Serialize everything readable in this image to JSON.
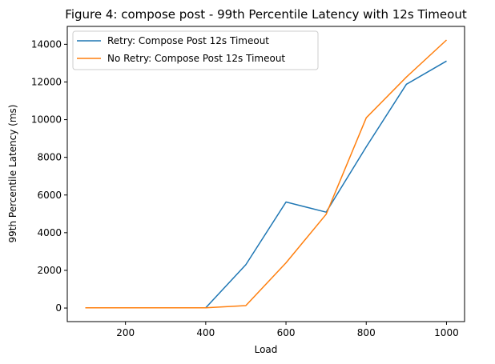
{
  "chart_data": {
    "type": "line",
    "title": "Figure 4: compose post - 99th Percentile Latency with 12s Timeout",
    "xlabel": "Load",
    "ylabel": "99th Percentile Latency (ms)",
    "x": [
      100,
      200,
      300,
      400,
      500,
      600,
      700,
      800,
      900,
      1000
    ],
    "xlim": [
      55,
      1045
    ],
    "ylim": [
      -720,
      14950
    ],
    "xticks": [
      200,
      400,
      600,
      800,
      1000
    ],
    "yticks": [
      0,
      2000,
      4000,
      6000,
      8000,
      10000,
      12000,
      14000
    ],
    "grid": false,
    "legend_position": "upper-left",
    "series": [
      {
        "name": "Retry: Compose Post 12s Timeout",
        "color": "#1f77b4",
        "values": [
          10,
          10,
          10,
          10,
          2300,
          5630,
          5090,
          8560,
          11880,
          13110
        ]
      },
      {
        "name": "No Retry: Compose Post 12s Timeout",
        "color": "#ff7f0e",
        "values": [
          10,
          10,
          10,
          10,
          130,
          2400,
          4980,
          10100,
          12260,
          14230
        ]
      }
    ]
  }
}
